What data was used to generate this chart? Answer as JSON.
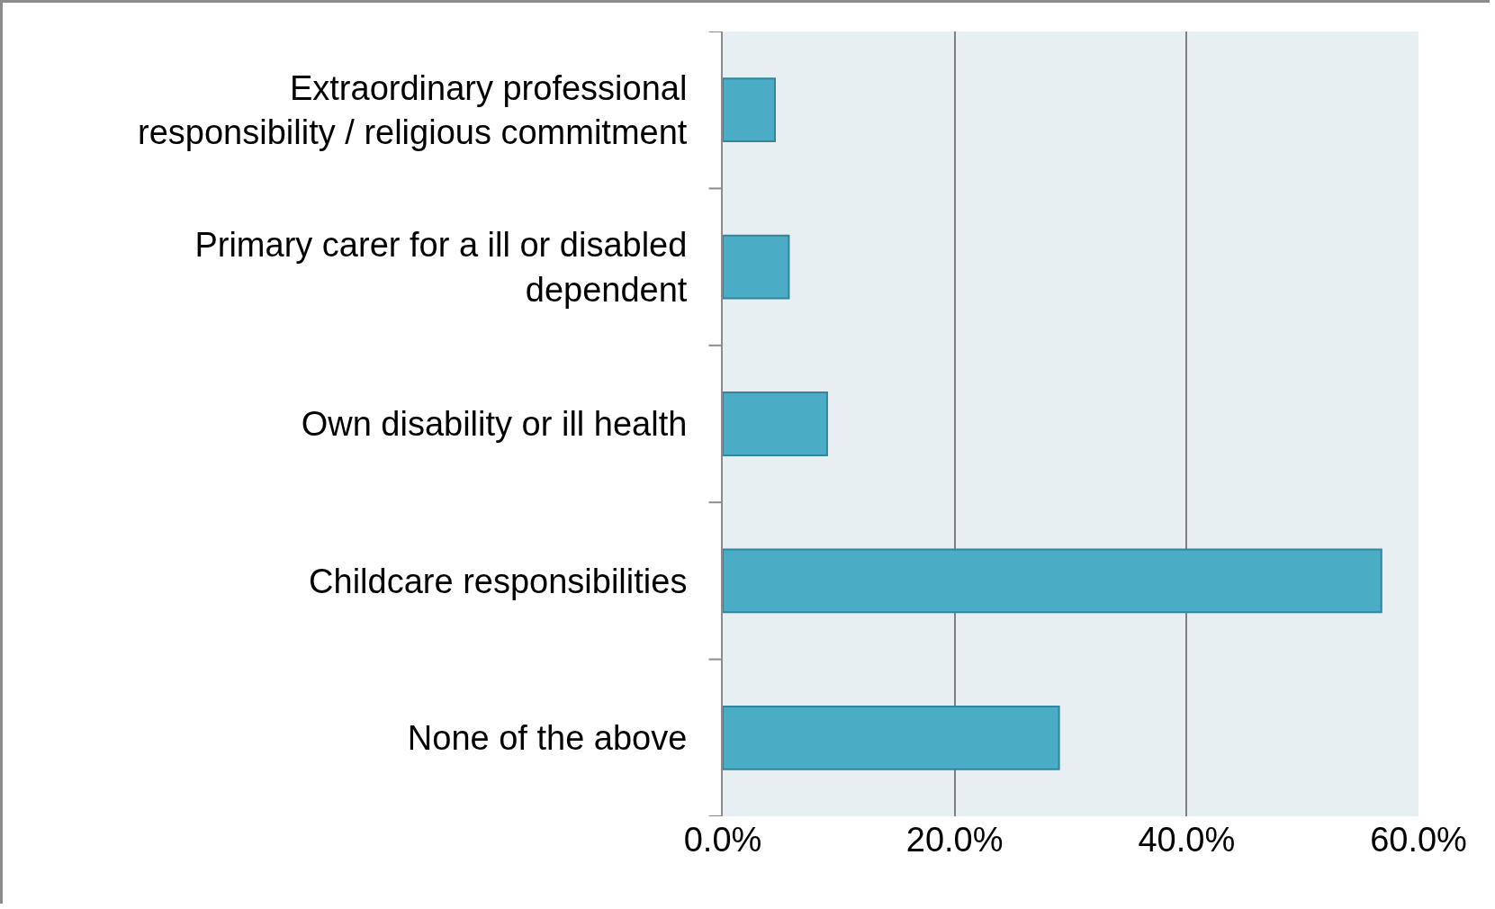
{
  "chart_data": {
    "type": "bar",
    "orientation": "horizontal",
    "categories": [
      "Extraordinary professional responsibility / religious commitment",
      "Primary carer for a ill or disabled dependent",
      "Own disability or ill health",
      "Childcare responsibilities",
      "None of the above"
    ],
    "values": [
      4.5,
      5.7,
      9.0,
      56.8,
      29.0
    ],
    "color": "#4bacc6",
    "xlim": [
      0,
      60
    ],
    "xticks": [
      {
        "value": 0,
        "label": "0.0%"
      },
      {
        "value": 20,
        "label": "20.0%"
      },
      {
        "value": 40,
        "label": "40.0%"
      },
      {
        "value": 60,
        "label": "60.0%"
      }
    ],
    "grid": "x"
  }
}
